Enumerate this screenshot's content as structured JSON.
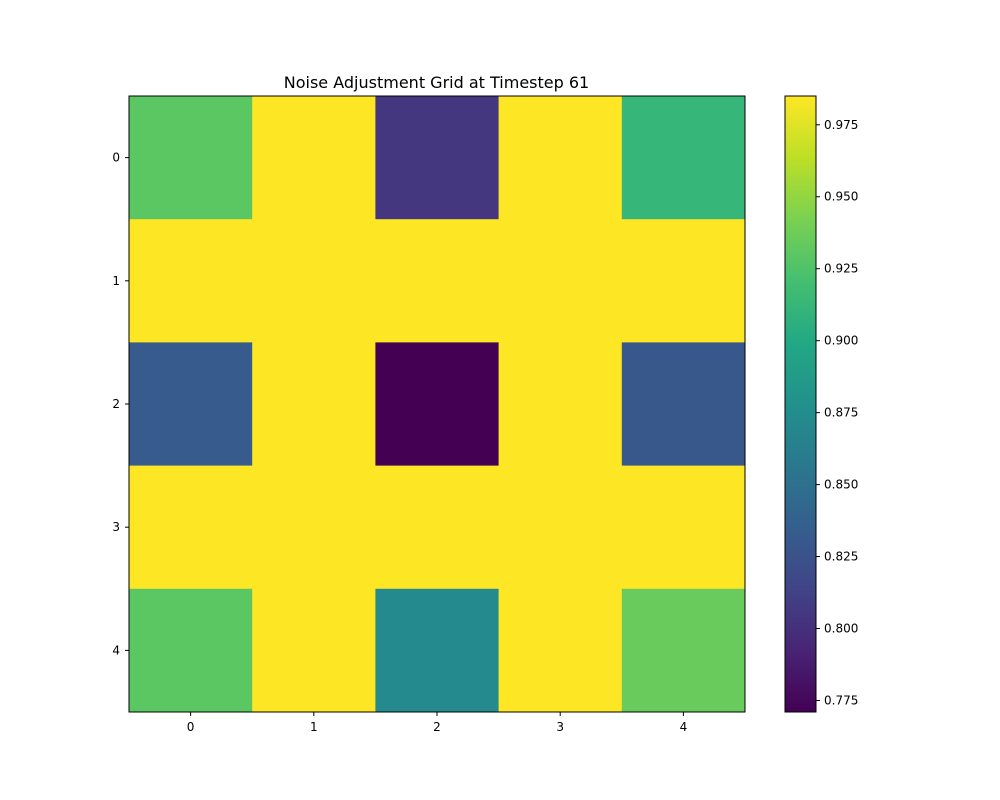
{
  "chart_data": {
    "type": "heatmap",
    "title": "Noise Adjustment Grid at Timestep 61",
    "x_categories": [
      "0",
      "1",
      "2",
      "3",
      "4"
    ],
    "y_categories": [
      "0",
      "1",
      "2",
      "3",
      "4"
    ],
    "values": [
      [
        0.93,
        0.985,
        0.805,
        0.985,
        0.912
      ],
      [
        0.985,
        0.985,
        0.985,
        0.985,
        0.985
      ],
      [
        0.832,
        0.985,
        0.771,
        0.985,
        0.829
      ],
      [
        0.985,
        0.985,
        0.985,
        0.985,
        0.985
      ],
      [
        0.93,
        0.985,
        0.872,
        0.985,
        0.935
      ]
    ],
    "colormap": "viridis",
    "colorbar": {
      "min": 0.771,
      "max": 0.985,
      "ticks": [
        0.775,
        0.8,
        0.825,
        0.85,
        0.875,
        0.9,
        0.925,
        0.95,
        0.975
      ],
      "tick_labels": [
        "0.775",
        "0.800",
        "0.825",
        "0.850",
        "0.875",
        "0.900",
        "0.925",
        "0.950",
        "0.975"
      ]
    }
  }
}
